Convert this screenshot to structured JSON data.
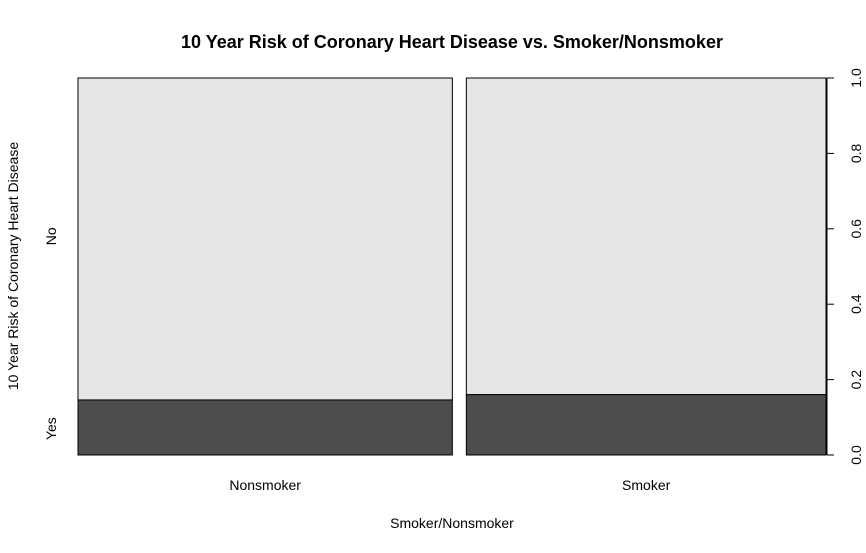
{
  "chart_data": {
    "type": "spineplot",
    "title": "10 Year Risk of Coronary Heart Disease vs. Smoker/Nonsmoker",
    "xlabel": "Smoker/Nonsmoker",
    "ylabel": "10 Year Risk of Coronary Heart Disease",
    "categories": [
      "Nonsmoker",
      "Smoker"
    ],
    "category_widths": [
      0.51,
      0.49
    ],
    "levels": [
      "Yes",
      "No"
    ],
    "level_label_positions": [
      0.07,
      0.58
    ],
    "yes_fraction": [
      0.146,
      0.16
    ],
    "colors": {
      "Yes": "#4d4d4d",
      "No": "#e6e6e6"
    },
    "y_axis": {
      "ticks": [
        0.0,
        0.2,
        0.4,
        0.6,
        0.8,
        1.0
      ],
      "tick_labels": [
        "0.0",
        "0.2",
        "0.4",
        "0.6",
        "0.8",
        "1.0"
      ],
      "ylim": [
        0,
        1
      ]
    }
  }
}
